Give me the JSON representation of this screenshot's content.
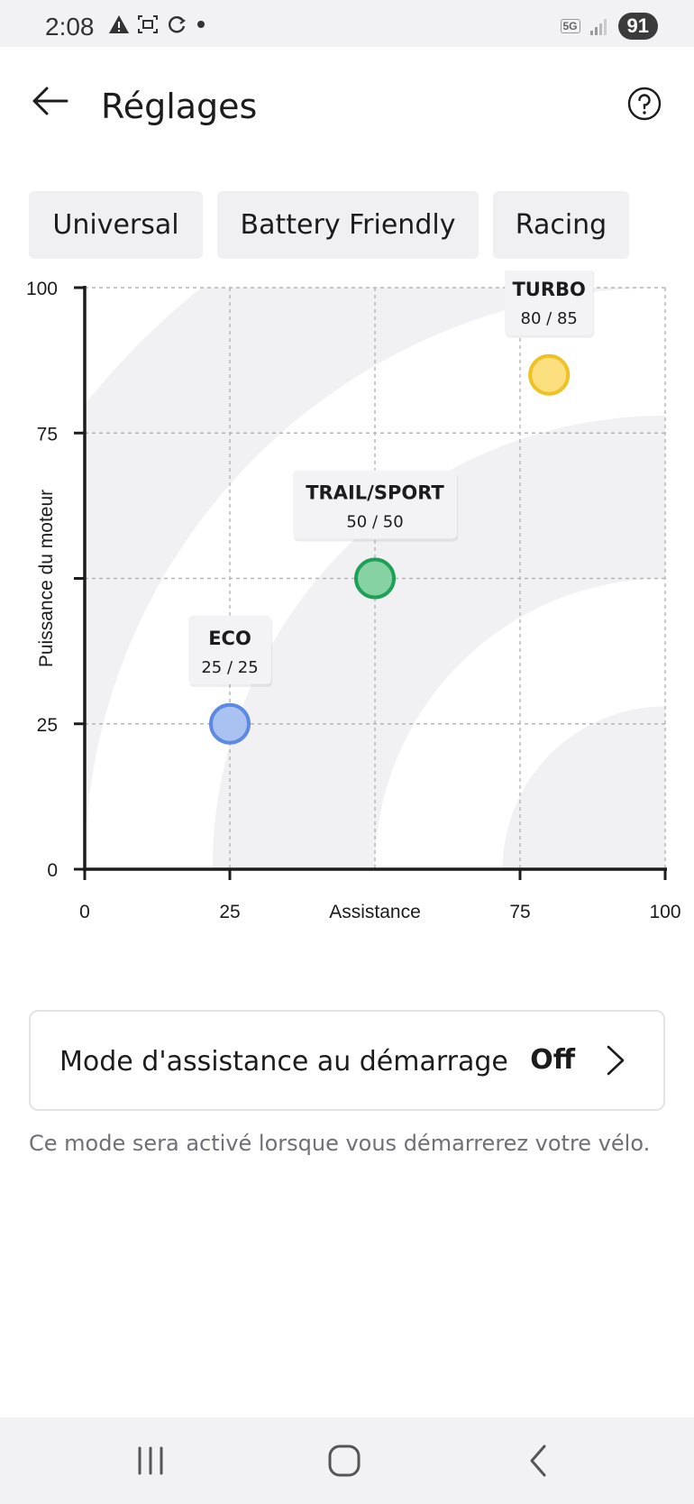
{
  "status_bar": {
    "time": "2:08",
    "network": "5G",
    "battery": "91"
  },
  "header": {
    "title": "Réglages"
  },
  "tabs": [
    {
      "label": "Universal"
    },
    {
      "label": "Battery Friendly"
    },
    {
      "label": "Racing"
    }
  ],
  "chart_data": {
    "type": "scatter",
    "xlabel": "Assistance",
    "ylabel": "Puissance du moteur",
    "xlim": [
      0,
      100
    ],
    "ylim": [
      0,
      100
    ],
    "x_ticks": [
      "0",
      "25",
      "75",
      "100"
    ],
    "y_ticks": [
      "0",
      "25",
      "75",
      "100"
    ],
    "grid": true,
    "points": [
      {
        "name": "ECO",
        "x": 25,
        "y": 25,
        "value_label": "25 / 25",
        "color": "#a9c2f2",
        "stroke": "#5b8ae0"
      },
      {
        "name": "TRAIL/SPORT",
        "x": 50,
        "y": 50,
        "value_label": "50 / 50",
        "color": "#86d2a3",
        "stroke": "#1fa058"
      },
      {
        "name": "TURBO",
        "x": 80,
        "y": 85,
        "value_label": "80 / 85",
        "color": "#fbde7d",
        "stroke": "#efc224"
      }
    ]
  },
  "startup_mode": {
    "label": "Mode d'assistance au démarrage",
    "value": "Off",
    "hint": "Ce mode sera activé lorsque vous démarrerez votre vélo."
  }
}
